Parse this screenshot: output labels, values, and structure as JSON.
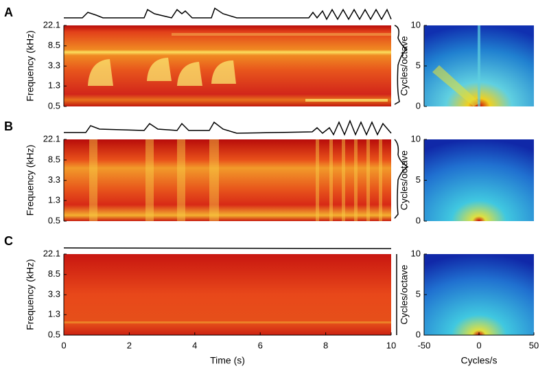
{
  "chart_data": [
    {
      "type": "spectrogram",
      "panel": "A",
      "ylabel": "Frequency (kHz)",
      "log_scale": true,
      "ylim": [
        0.5,
        22.1
      ],
      "yticks": [
        0.5,
        1.3,
        3.3,
        8.5,
        22.1
      ],
      "xlim": [
        0,
        10
      ]
    },
    {
      "type": "heatmap",
      "ylabel": "Cycles/octave",
      "ylim": [
        0,
        10
      ],
      "yticks": [
        0,
        5,
        10
      ],
      "xlim": [
        -50,
        50
      ]
    },
    {
      "type": "spectrogram",
      "panel": "B",
      "ylabel": "Frequency (kHz)",
      "log_scale": true,
      "ylim": [
        0.5,
        22.1
      ],
      "yticks": [
        0.5,
        1.3,
        3.3,
        8.5,
        22.1
      ],
      "xlim": [
        0,
        10
      ]
    },
    {
      "type": "heatmap",
      "ylabel": "Cycles/octave",
      "ylim": [
        0,
        10
      ],
      "yticks": [
        0,
        5,
        10
      ],
      "xlim": [
        -50,
        50
      ]
    },
    {
      "type": "spectrogram",
      "panel": "C",
      "ylabel": "Frequency (kHz)",
      "log_scale": true,
      "ylim": [
        0.5,
        22.1
      ],
      "yticks": [
        0.5,
        1.3,
        3.3,
        8.5,
        22.1
      ],
      "xlim": [
        0,
        10
      ],
      "xticks": [
        0,
        2,
        4,
        6,
        8,
        10
      ],
      "xlabel": "Time (s)"
    },
    {
      "type": "heatmap",
      "ylabel": "Cycles/octave",
      "ylim": [
        0,
        10
      ],
      "yticks": [
        0,
        5,
        10
      ],
      "xlim": [
        -50,
        50
      ],
      "xticks": [
        -50,
        0,
        50
      ],
      "xlabel": "Cycles/s"
    }
  ]
}
